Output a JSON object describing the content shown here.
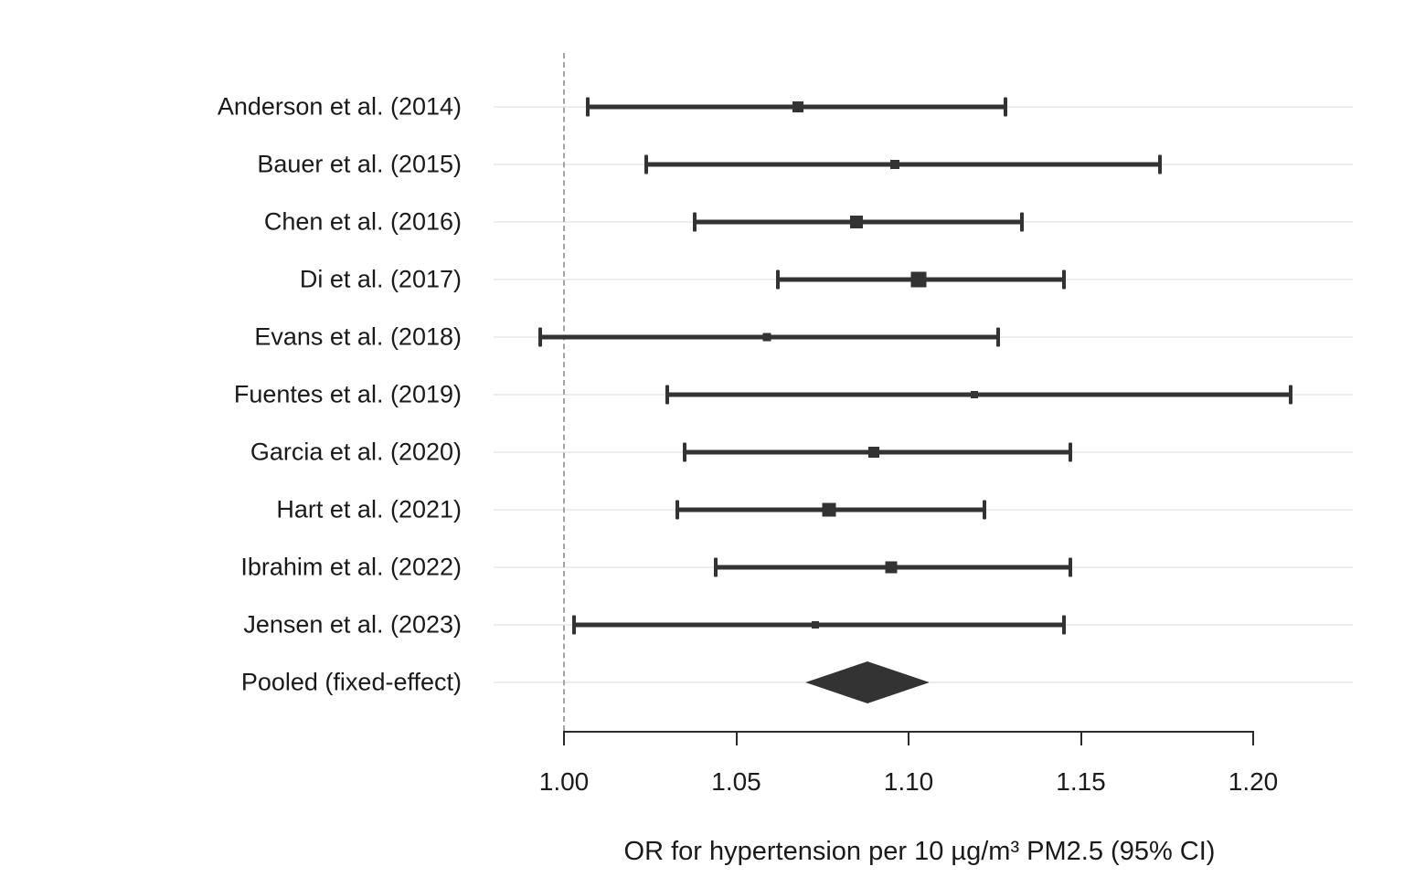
{
  "chart_data": {
    "type": "scatter",
    "subtype": "forest-plot-meta-analysis",
    "title": "",
    "xlabel": "OR for hypertension per 10 µg/m³ PM2.5 (95% CI)",
    "ylabel": "",
    "x_ticks": [
      1.0,
      1.05,
      1.1,
      1.15,
      1.2
    ],
    "x_tick_labels": [
      "1.00",
      "1.05",
      "1.10",
      "1.15",
      "1.20"
    ],
    "xlim": [
      0.985,
      1.228
    ],
    "reference_line_x": 1.0,
    "grid": "horizontal-light",
    "legend": "none",
    "studies": [
      {
        "label": "Anderson et al. (2014)",
        "or": 1.068,
        "ci_low": 1.007,
        "ci_high": 1.128,
        "marker_size": 12
      },
      {
        "label": "Bauer et al. (2015)",
        "or": 1.096,
        "ci_low": 1.024,
        "ci_high": 1.173,
        "marker_size": 10
      },
      {
        "label": "Chen et al. (2016)",
        "or": 1.085,
        "ci_low": 1.038,
        "ci_high": 1.133,
        "marker_size": 14
      },
      {
        "label": "Di et al. (2017)",
        "or": 1.103,
        "ci_low": 1.062,
        "ci_high": 1.145,
        "marker_size": 17
      },
      {
        "label": "Evans et al. (2018)",
        "or": 1.059,
        "ci_low": 0.993,
        "ci_high": 1.126,
        "marker_size": 9
      },
      {
        "label": "Fuentes et al. (2019)",
        "or": 1.119,
        "ci_low": 1.03,
        "ci_high": 1.211,
        "marker_size": 8
      },
      {
        "label": "Garcia et al. (2020)",
        "or": 1.09,
        "ci_low": 1.035,
        "ci_high": 1.147,
        "marker_size": 12
      },
      {
        "label": "Hart et al. (2021)",
        "or": 1.077,
        "ci_low": 1.033,
        "ci_high": 1.122,
        "marker_size": 15
      },
      {
        "label": "Ibrahim et al. (2022)",
        "or": 1.095,
        "ci_low": 1.044,
        "ci_high": 1.147,
        "marker_size": 13
      },
      {
        "label": "Jensen et al. (2023)",
        "or": 1.073,
        "ci_low": 1.003,
        "ci_high": 1.145,
        "marker_size": 8
      }
    ],
    "pooled": {
      "label": "Pooled (fixed-effect)",
      "or": 1.088,
      "ci_low": 1.07,
      "ci_high": 1.106
    },
    "colors": {
      "estimate": "#333333",
      "ci_line": "#333333",
      "reference_line": "#a3a3a3",
      "gridline": "#ededed",
      "axis": "#2b2b2b",
      "text": "#1a1a1a",
      "background": "#ffffff"
    }
  }
}
